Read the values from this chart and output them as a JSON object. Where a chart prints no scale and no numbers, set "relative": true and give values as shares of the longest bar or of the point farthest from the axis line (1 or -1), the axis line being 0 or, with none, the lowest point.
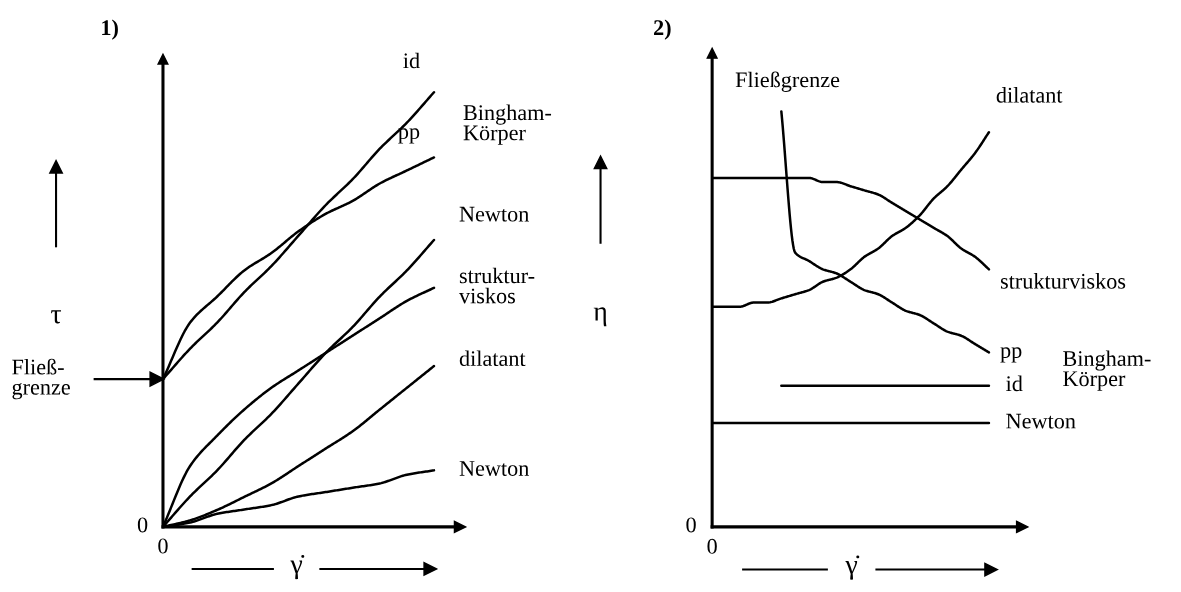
{
  "chart_data": [
    {
      "type": "line",
      "title": "1)",
      "xlabel": "γ̇",
      "ylabel": "τ",
      "relative": true,
      "categories": [
        null,
        null,
        null,
        null,
        null,
        null,
        null,
        null,
        null,
        null,
        null
      ],
      "series": [
        {
          "name": "id",
          "color": "#000000",
          "values": [
            0.34,
            0.41,
            0.47,
            0.54,
            0.6,
            0.67,
            0.74,
            0.8,
            0.87,
            0.93,
            1.0
          ]
        },
        {
          "name": "pp",
          "color": "#000000",
          "values": [
            0.34,
            0.47,
            0.53,
            0.59,
            0.63,
            0.68,
            0.72,
            0.75,
            0.79,
            0.82,
            0.85
          ]
        },
        {
          "name": "Newton",
          "color": "#000000",
          "values": [
            0,
            0.07,
            0.13,
            0.2,
            0.26,
            0.33,
            0.4,
            0.46,
            0.53,
            0.59,
            0.66
          ]
        },
        {
          "name": "struktur-\nviskos",
          "color": "#000000",
          "values": [
            0,
            0.14,
            0.21,
            0.27,
            0.32,
            0.36,
            0.4,
            0.44,
            0.48,
            0.52,
            0.55
          ]
        },
        {
          "name": "dilatant",
          "color": "#000000",
          "values": [
            0,
            0.015,
            0.039,
            0.069,
            0.1,
            0.14,
            0.18,
            0.22,
            0.27,
            0.32,
            0.37
          ]
        },
        {
          "name": "Newton",
          "color": "#000000",
          "values": [
            0,
            0.01,
            0.03,
            0.04,
            0.05,
            0.07,
            0.08,
            0.09,
            0.1,
            0.12,
            0.13
          ]
        }
      ],
      "annotations": [
        "0",
        "0",
        "Fließ-\ngrenze",
        "Bingham-\nKörper"
      ]
    },
    {
      "type": "line",
      "title": "2)",
      "xlabel": "γ̇",
      "ylabel": "η",
      "relative": true,
      "categories": [
        null,
        null,
        null,
        null,
        null,
        null,
        null,
        null,
        null,
        null,
        null,
        null,
        null,
        null,
        null,
        null,
        null,
        null,
        null,
        null,
        null
      ],
      "series": [
        {
          "name": "dilatant",
          "color": "#000000",
          "values": [
            0.53,
            0.53,
            0.53,
            0.54,
            0.54,
            0.55,
            0.56,
            0.57,
            0.59,
            0.6,
            0.62,
            0.65,
            0.67,
            0.7,
            0.72,
            0.75,
            0.79,
            0.82,
            0.86,
            0.9,
            0.95
          ]
        },
        {
          "name": "strukturviskos",
          "color": "#000000",
          "values": [
            0.84,
            0.84,
            0.84,
            0.84,
            0.84,
            0.84,
            0.84,
            0.84,
            0.83,
            0.83,
            0.82,
            0.81,
            0.8,
            0.78,
            0.76,
            0.74,
            0.72,
            0.7,
            0.67,
            0.65,
            0.62
          ]
        },
        {
          "name": "pp",
          "color": "#000000",
          "values": [
            null,
            null,
            null,
            null,
            null,
            1.0,
            0.66,
            0.64,
            0.62,
            0.61,
            0.59,
            0.57,
            0.56,
            0.54,
            0.52,
            0.51,
            0.49,
            0.47,
            0.46,
            0.44,
            0.42
          ]
        },
        {
          "name": "id",
          "color": "#000000",
          "values": [
            null,
            null,
            null,
            null,
            null,
            0.34,
            0.34,
            0.34,
            0.34,
            0.34,
            0.34,
            0.34,
            0.34,
            0.34,
            0.34,
            0.34,
            0.34,
            0.34,
            0.34,
            0.34,
            0.34
          ]
        },
        {
          "name": "Newton",
          "color": "#000000",
          "values": [
            0.25,
            0.25,
            0.25,
            0.25,
            0.25,
            0.25,
            0.25,
            0.25,
            0.25,
            0.25,
            0.25,
            0.25,
            0.25,
            0.25,
            0.25,
            0.25,
            0.25,
            0.25,
            0.25,
            0.25,
            0.25
          ]
        }
      ],
      "annotations": [
        "0",
        "0",
        "Fließgrenze",
        "Bingham-\nKörper"
      ]
    }
  ]
}
